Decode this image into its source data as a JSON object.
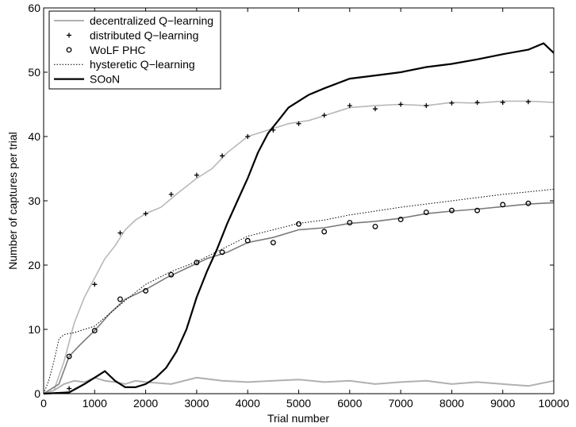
{
  "chart_data": {
    "type": "line",
    "title": "",
    "xlabel": "Trial number",
    "ylabel": "Number of captures per trial",
    "xlim": [
      0,
      10000
    ],
    "ylim": [
      0,
      60
    ],
    "xticks": [
      0,
      1000,
      2000,
      3000,
      4000,
      5000,
      6000,
      7000,
      8000,
      9000,
      10000
    ],
    "yticks": [
      0,
      10,
      20,
      30,
      40,
      50,
      60
    ],
    "grid": false,
    "legend_position": "top-left",
    "series": [
      {
        "name": "decentralized Q−learning",
        "color": "#b0b0b0",
        "style": "solid",
        "x": [
          0,
          200,
          400,
          600,
          800,
          1000,
          1200,
          1400,
          1600,
          1800,
          2000,
          2500,
          3000,
          3500,
          4000,
          4500,
          5000,
          5500,
          6000,
          6500,
          7000,
          7500,
          8000,
          8500,
          9000,
          9500,
          10000
        ],
        "y": [
          0,
          0.5,
          1.5,
          2,
          1.8,
          2.5,
          2,
          1.8,
          1.5,
          2,
          1.8,
          1.5,
          2.5,
          2,
          1.8,
          2,
          2.2,
          1.8,
          2,
          1.5,
          1.8,
          2,
          1.5,
          1.8,
          1.5,
          1.2,
          2
        ]
      },
      {
        "name": "distributed Q−learning",
        "color": "#000000",
        "style": "markers-plus",
        "x": [
          500,
          1000,
          1500,
          2000,
          2500,
          3000,
          3500,
          4000,
          4500,
          5000,
          5500,
          6000,
          6500,
          7000,
          7500,
          8000,
          8500,
          9000,
          9500
        ],
        "y": [
          0.8,
          17,
          25,
          28,
          31,
          34,
          37,
          40,
          41,
          42,
          43.3,
          44.8,
          44.3,
          45,
          44.8,
          45.2,
          45.3,
          45.3,
          45.4
        ],
        "trace": {
          "color": "#b8b8b8",
          "x": [
            0,
            200,
            400,
            600,
            800,
            1000,
            1200,
            1400,
            1600,
            1800,
            2000,
            2300,
            2600,
            3000,
            3300,
            3600,
            4000,
            4400,
            4800,
            5200,
            5600,
            6000,
            6500,
            7000,
            7500,
            8000,
            8500,
            9000,
            9500,
            10000
          ],
          "y": [
            0,
            0.5,
            5,
            11,
            15,
            18,
            21,
            23,
            25.5,
            27,
            28,
            29,
            31,
            33.5,
            35,
            37.5,
            40,
            41,
            42,
            42.5,
            43.5,
            44.5,
            44.8,
            45,
            44.8,
            45.3,
            45.2,
            45.5,
            45.5,
            45.3
          ]
        }
      },
      {
        "name": "WoLF PHC",
        "color": "#000000",
        "style": "markers-circle",
        "x": [
          500,
          1000,
          1500,
          2000,
          2500,
          3000,
          3500,
          4000,
          4500,
          5000,
          5500,
          6000,
          6500,
          7000,
          7500,
          8000,
          8500,
          9000,
          9500
        ],
        "y": [
          5.8,
          9.8,
          14.7,
          16,
          18.5,
          20.4,
          22,
          23.8,
          23.5,
          26.4,
          25.2,
          26.6,
          26,
          27.1,
          28.2,
          28.5,
          28.5,
          29.4,
          29.6
        ],
        "trace": {
          "color": "#7a7a7a",
          "x": [
            0,
            300,
            500,
            700,
            1000,
            1300,
            1600,
            2000,
            2400,
            2800,
            3200,
            3600,
            4000,
            4500,
            5000,
            5500,
            6000,
            6500,
            7000,
            7500,
            8000,
            8500,
            9000,
            9500,
            10000
          ],
          "y": [
            0,
            1.5,
            5.8,
            7.5,
            9.8,
            12.5,
            14.7,
            16.2,
            18,
            19.5,
            21,
            22,
            23.5,
            24.3,
            25.5,
            25.8,
            26.5,
            26.8,
            27.3,
            28,
            28.4,
            28.7,
            29.1,
            29.5,
            29.7
          ]
        }
      },
      {
        "name": "hysteretic Q−learning",
        "color": "#000000",
        "style": "dotted",
        "x": [
          0,
          100,
          200,
          300,
          400,
          600,
          800,
          1000,
          1300,
          1600,
          2000,
          2500,
          3000,
          3500,
          4000,
          4500,
          5000,
          5500,
          6000,
          6500,
          7000,
          7500,
          8000,
          8500,
          9000,
          9500,
          10000
        ],
        "y": [
          0,
          2,
          5,
          8.5,
          9.2,
          9.5,
          10,
          10.5,
          12.5,
          14.5,
          17,
          19,
          20.5,
          22.5,
          24.5,
          25.5,
          26.5,
          27,
          27.8,
          28.4,
          29,
          29.5,
          30,
          30.5,
          31,
          31.4,
          31.8
        ]
      },
      {
        "name": "SOoN",
        "color": "#000000",
        "style": "thick",
        "x": [
          0,
          500,
          800,
          1000,
          1200,
          1400,
          1600,
          1800,
          2000,
          2200,
          2400,
          2600,
          2800,
          3000,
          3200,
          3400,
          3600,
          3800,
          4000,
          4200,
          4400,
          4600,
          4800,
          5000,
          5200,
          5500,
          6000,
          6500,
          7000,
          7500,
          8000,
          8500,
          9000,
          9500,
          9800,
          10000
        ],
        "y": [
          0,
          0.2,
          1.5,
          2.5,
          3.5,
          2,
          1,
          1,
          1.5,
          2.5,
          4,
          6.5,
          10,
          15,
          19,
          22.5,
          26.5,
          30,
          33.5,
          37.5,
          40.5,
          42.5,
          44.5,
          45.5,
          46.5,
          47.5,
          49,
          49.5,
          50,
          50.8,
          51.3,
          52,
          52.8,
          53.5,
          54.5,
          53
        ]
      }
    ]
  }
}
